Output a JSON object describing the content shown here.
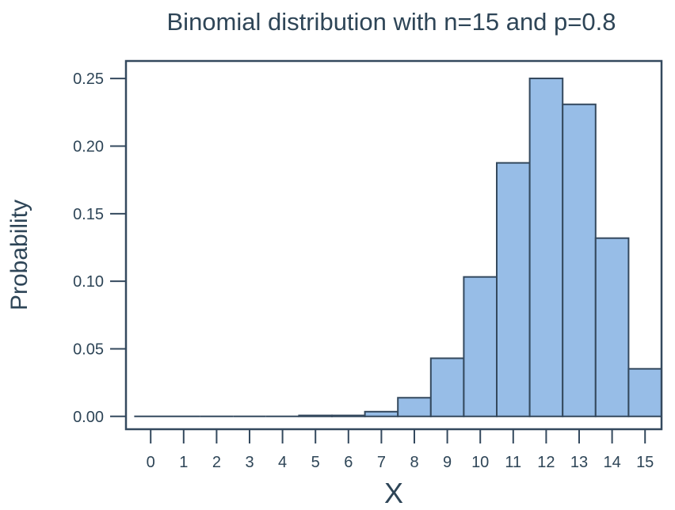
{
  "chart_data": {
    "type": "bar",
    "title": "Binomial distribution with n=15 and p=0.8",
    "xlabel": "X",
    "ylabel": "Probability",
    "categories": [
      "0",
      "1",
      "2",
      "3",
      "4",
      "5",
      "6",
      "7",
      "8",
      "9",
      "10",
      "11",
      "12",
      "13",
      "14",
      "15"
    ],
    "values": [
      0.0,
      0.0,
      0.0,
      0.0,
      0.0,
      0.0007,
      0.0007,
      0.0035,
      0.0138,
      0.043,
      0.1032,
      0.1876,
      0.2501,
      0.2309,
      0.1319,
      0.0352
    ],
    "ylim": [
      -0.0095,
      0.263
    ],
    "yticks": [
      0.0,
      0.05,
      0.1,
      0.15,
      0.2,
      0.25
    ],
    "ytick_labels": [
      "0.00",
      "0.05",
      "0.10",
      "0.15",
      "0.20",
      "0.25"
    ],
    "xlim": [
      -0.75,
      15.5
    ],
    "grid": false,
    "bar_color": "#97bde7",
    "edge_color": "#34495e",
    "text_color": "#2e4557"
  }
}
